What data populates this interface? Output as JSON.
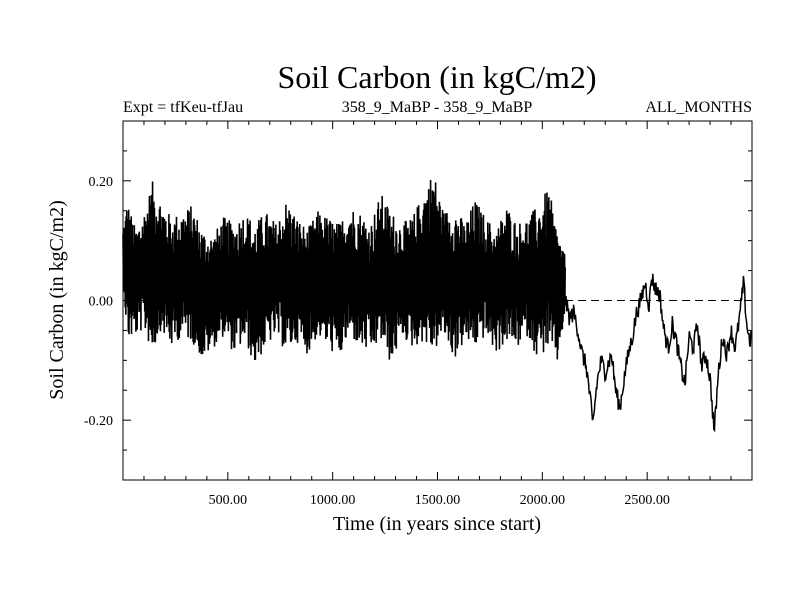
{
  "chart_data": {
    "type": "line",
    "title": "Soil Carbon (in kgC/m2)",
    "subtitle_left": "Expt = tfKeu-tfJau",
    "subtitle_center": "358_9_MaBP - 358_9_MaBP",
    "subtitle_right": "ALL_MONTHS",
    "xlabel": "Time (in years since start)",
    "ylabel": "Soil Carbon (in kgC/m2)",
    "xlim": [
      0,
      3000
    ],
    "ylim": [
      -0.3,
      0.3
    ],
    "x_ticks": [
      {
        "value": 500,
        "label": "500.00"
      },
      {
        "value": 1000,
        "label": "1000.00"
      },
      {
        "value": 1500,
        "label": "1500.00"
      },
      {
        "value": 2000,
        "label": "2000.00"
      },
      {
        "value": 2500,
        "label": "2500.00"
      }
    ],
    "y_ticks": [
      {
        "value": 0.2,
        "label": "0.20"
      },
      {
        "value": 0.0,
        "label": "0.00"
      },
      {
        "value": -0.2,
        "label": "-0.20"
      }
    ],
    "reference_line": {
      "y": 0.0,
      "style": "dashed"
    },
    "grid": false,
    "series": [
      {
        "segment": "high-variability",
        "x_range": [
          0,
          2110
        ],
        "upper_envelope": [
          [
            0,
            0.12
          ],
          [
            20,
            0.17
          ],
          [
            60,
            0.12
          ],
          [
            100,
            0.15
          ],
          [
            140,
            0.2
          ],
          [
            180,
            0.17
          ],
          [
            230,
            0.14
          ],
          [
            280,
            0.15
          ],
          [
            330,
            0.16
          ],
          [
            380,
            0.12
          ],
          [
            430,
            0.11
          ],
          [
            480,
            0.14
          ],
          [
            530,
            0.13
          ],
          [
            580,
            0.15
          ],
          [
            630,
            0.13
          ],
          [
            680,
            0.15
          ],
          [
            730,
            0.13
          ],
          [
            780,
            0.17
          ],
          [
            830,
            0.14
          ],
          [
            880,
            0.12
          ],
          [
            930,
            0.15
          ],
          [
            980,
            0.14
          ],
          [
            1030,
            0.13
          ],
          [
            1080,
            0.16
          ],
          [
            1130,
            0.15
          ],
          [
            1180,
            0.13
          ],
          [
            1230,
            0.18
          ],
          [
            1280,
            0.15
          ],
          [
            1330,
            0.13
          ],
          [
            1380,
            0.14
          ],
          [
            1430,
            0.18
          ],
          [
            1480,
            0.22
          ],
          [
            1530,
            0.15
          ],
          [
            1580,
            0.16
          ],
          [
            1630,
            0.13
          ],
          [
            1680,
            0.17
          ],
          [
            1730,
            0.14
          ],
          [
            1780,
            0.12
          ],
          [
            1830,
            0.16
          ],
          [
            1880,
            0.13
          ],
          [
            1930,
            0.14
          ],
          [
            1980,
            0.16
          ],
          [
            2030,
            0.19
          ],
          [
            2070,
            0.12
          ],
          [
            2110,
            0.08
          ]
        ],
        "lower_envelope": [
          [
            0,
            0.04
          ],
          [
            20,
            -0.07
          ],
          [
            60,
            -0.06
          ],
          [
            100,
            -0.05
          ],
          [
            140,
            -0.09
          ],
          [
            180,
            -0.05
          ],
          [
            230,
            -0.08
          ],
          [
            280,
            -0.06
          ],
          [
            330,
            -0.07
          ],
          [
            380,
            -0.1
          ],
          [
            430,
            -0.08
          ],
          [
            480,
            -0.06
          ],
          [
            530,
            -0.09
          ],
          [
            580,
            -0.07
          ],
          [
            630,
            -0.11
          ],
          [
            680,
            -0.08
          ],
          [
            730,
            -0.06
          ],
          [
            780,
            -0.09
          ],
          [
            830,
            -0.07
          ],
          [
            880,
            -0.09
          ],
          [
            930,
            -0.06
          ],
          [
            980,
            -0.08
          ],
          [
            1030,
            -0.1
          ],
          [
            1080,
            -0.06
          ],
          [
            1130,
            -0.08
          ],
          [
            1180,
            -0.09
          ],
          [
            1230,
            -0.07
          ],
          [
            1280,
            -0.11
          ],
          [
            1330,
            -0.06
          ],
          [
            1380,
            -0.08
          ],
          [
            1430,
            -0.07
          ],
          [
            1480,
            -0.09
          ],
          [
            1530,
            -0.06
          ],
          [
            1580,
            -0.1
          ],
          [
            1630,
            -0.07
          ],
          [
            1680,
            -0.08
          ],
          [
            1730,
            -0.06
          ],
          [
            1780,
            -0.09
          ],
          [
            1830,
            -0.07
          ],
          [
            1880,
            -0.08
          ],
          [
            1930,
            -0.06
          ],
          [
            1980,
            -0.1
          ],
          [
            2030,
            -0.08
          ],
          [
            2070,
            -0.11
          ],
          [
            2110,
            -0.02
          ]
        ]
      },
      {
        "segment": "low-variability",
        "x_range": [
          2110,
          3000
        ],
        "points": [
          [
            2110,
            0.0
          ],
          [
            2130,
            -0.03
          ],
          [
            2150,
            -0.02
          ],
          [
            2170,
            -0.05
          ],
          [
            2190,
            -0.09
          ],
          [
            2210,
            -0.11
          ],
          [
            2230,
            -0.17
          ],
          [
            2240,
            -0.21
          ],
          [
            2260,
            -0.14
          ],
          [
            2280,
            -0.1
          ],
          [
            2300,
            -0.12
          ],
          [
            2330,
            -0.09
          ],
          [
            2350,
            -0.15
          ],
          [
            2370,
            -0.18
          ],
          [
            2390,
            -0.13
          ],
          [
            2410,
            -0.09
          ],
          [
            2430,
            -0.06
          ],
          [
            2450,
            -0.02
          ],
          [
            2470,
            0.0
          ],
          [
            2490,
            0.03
          ],
          [
            2510,
            -0.01
          ],
          [
            2520,
            0.04
          ],
          [
            2540,
            0.02
          ],
          [
            2560,
            0.01
          ],
          [
            2580,
            -0.05
          ],
          [
            2600,
            -0.08
          ],
          [
            2620,
            -0.04
          ],
          [
            2640,
            -0.07
          ],
          [
            2660,
            -0.11
          ],
          [
            2680,
            -0.14
          ],
          [
            2700,
            -0.06
          ],
          [
            2720,
            -0.08
          ],
          [
            2740,
            -0.04
          ],
          [
            2760,
            -0.11
          ],
          [
            2780,
            -0.09
          ],
          [
            2800,
            -0.13
          ],
          [
            2820,
            -0.22
          ],
          [
            2840,
            -0.12
          ],
          [
            2860,
            -0.06
          ],
          [
            2880,
            -0.09
          ],
          [
            2900,
            -0.05
          ],
          [
            2920,
            -0.08
          ],
          [
            2940,
            -0.03
          ],
          [
            2960,
            0.03
          ],
          [
            2975,
            -0.04
          ],
          [
            2990,
            -0.07
          ],
          [
            3000,
            -0.05
          ]
        ]
      }
    ]
  }
}
